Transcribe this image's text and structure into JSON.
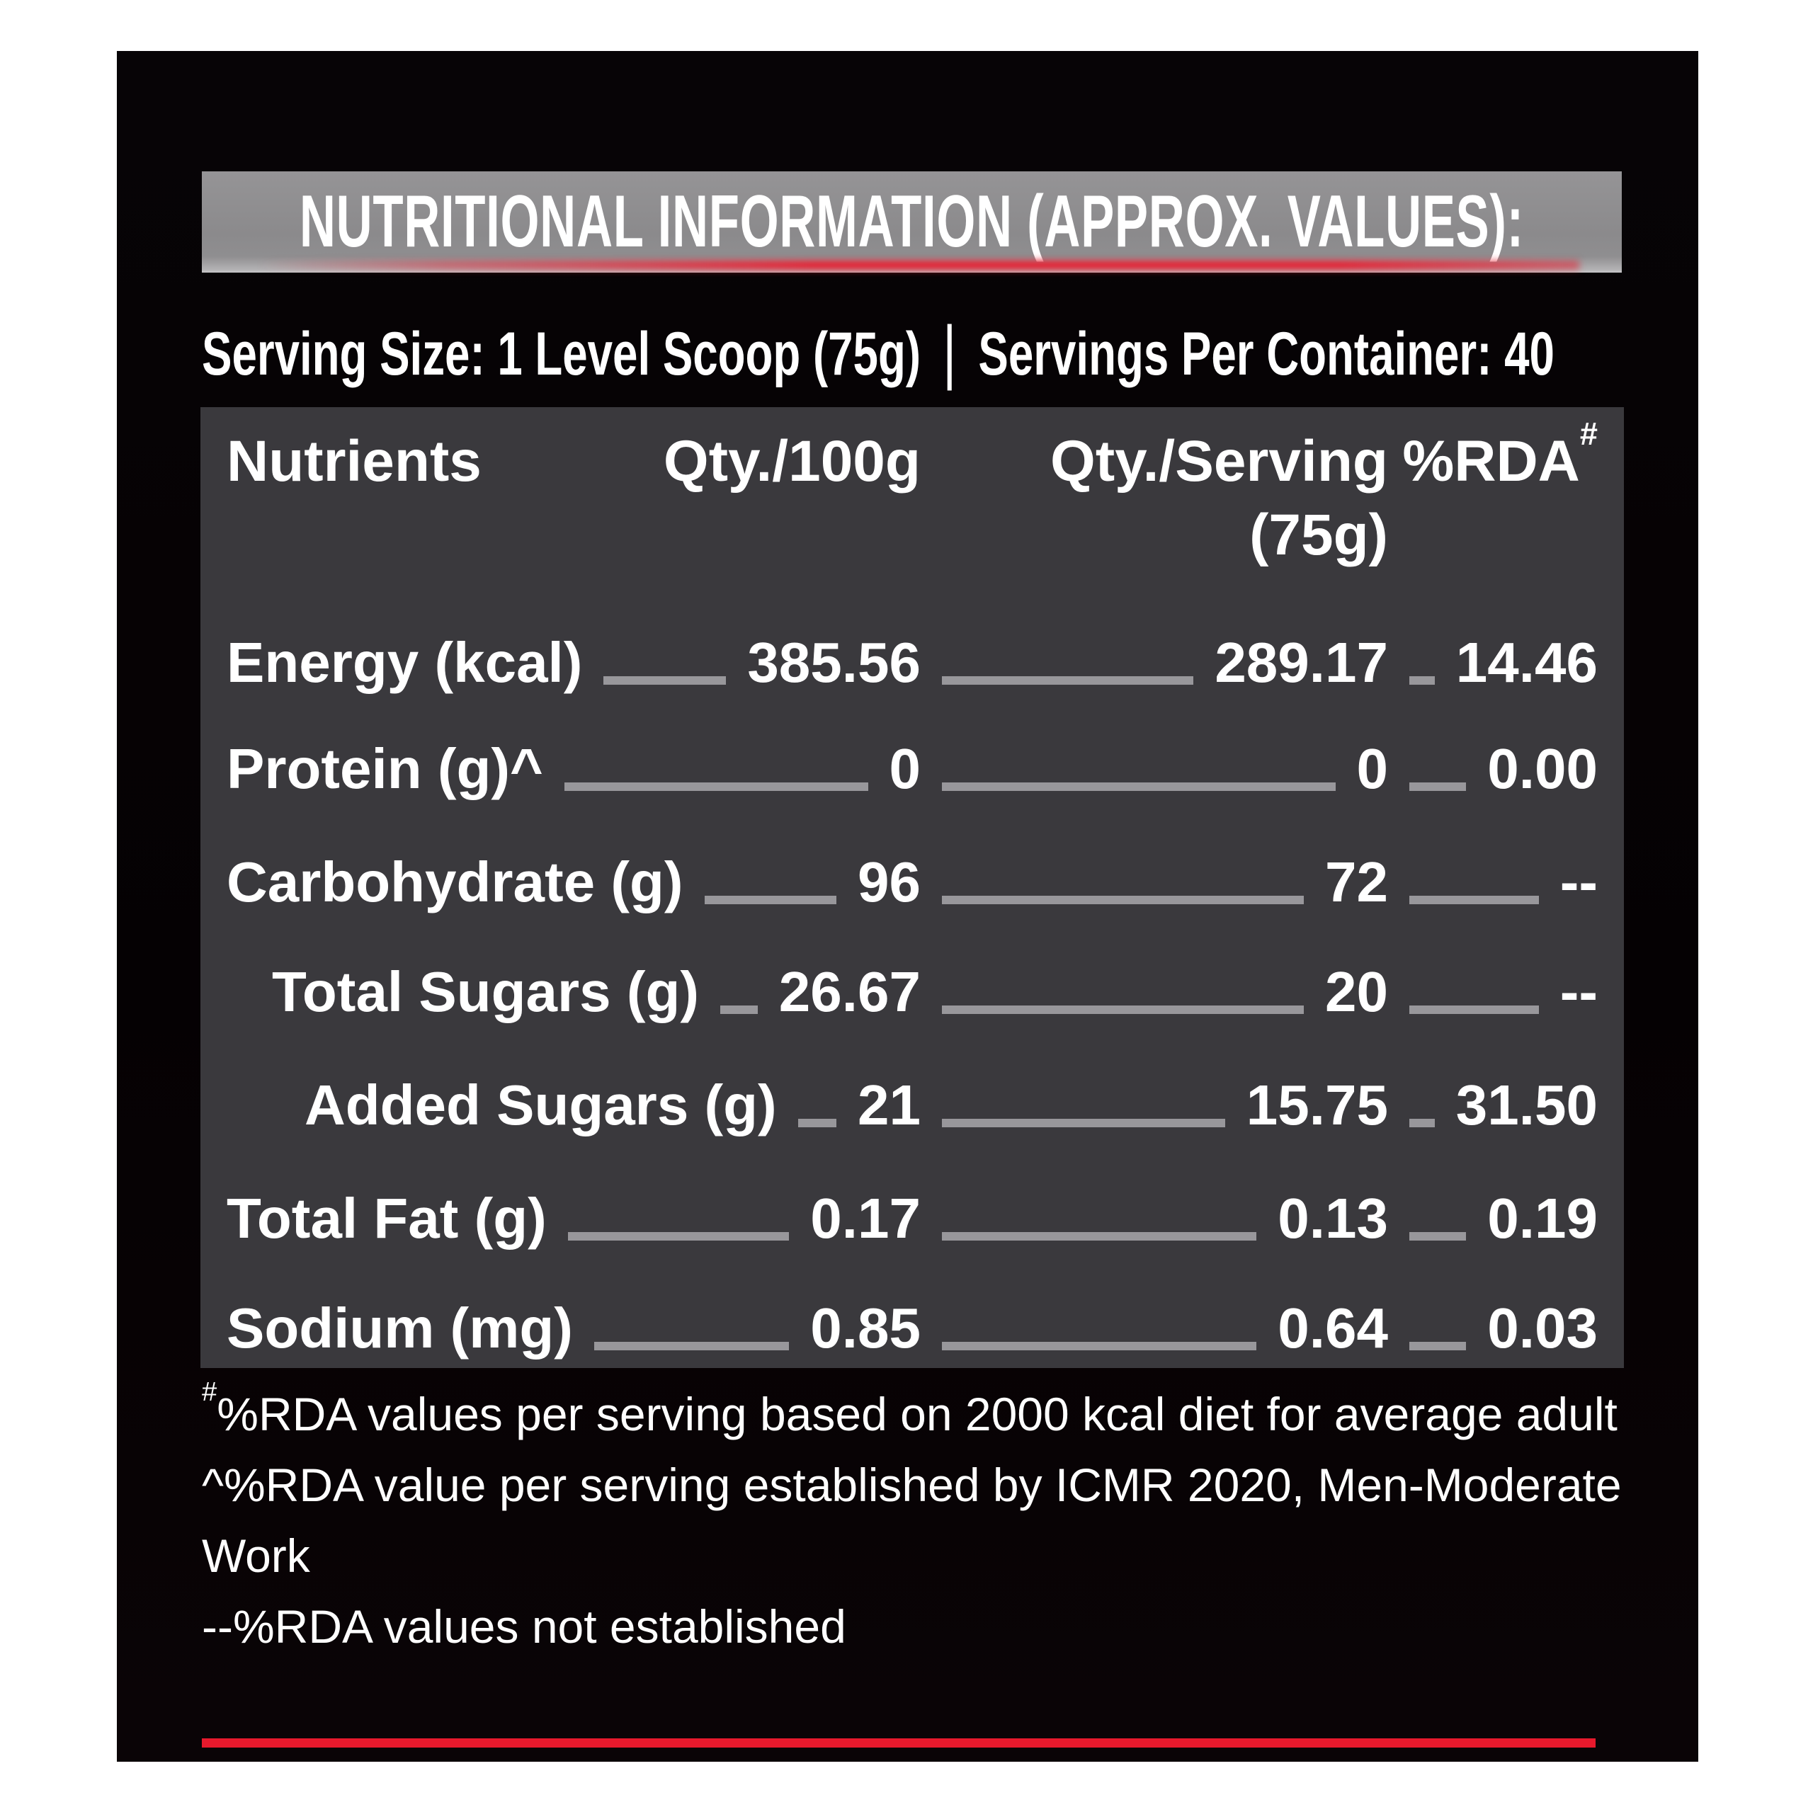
{
  "header": {
    "title": "NUTRITIONAL INFORMATION (APPROX. VALUES):"
  },
  "serving": {
    "size_text": "Serving Size: 1 Level Scoop (75g)",
    "separator": "|",
    "per_container_text": "Servings Per Container: 40"
  },
  "table": {
    "columns": {
      "nutrients": "Nutrients",
      "per_100g": "Qty./100g",
      "per_serving_line1": "Qty./Serving",
      "per_serving_line2": "(75g)",
      "rda": "%RDA",
      "rda_sup": "#"
    },
    "rows": [
      {
        "label": "Energy (kcal)",
        "per_100g": "385.56",
        "per_serving": "289.17",
        "rda": "14.46"
      },
      {
        "label": "Protein (g)",
        "sup": "^",
        "per_100g": "0",
        "per_serving": "0",
        "rda": "0.00"
      },
      {
        "label": "Carbohydrate (g)",
        "per_100g": "96",
        "per_serving": "72",
        "rda": "--"
      },
      {
        "label": "Total Sugars (g)",
        "per_100g": "26.67",
        "per_serving": "20",
        "rda": "--"
      },
      {
        "label": "Added Sugars (g)",
        "per_100g": "21",
        "per_serving": "15.75",
        "rda": "31.50"
      },
      {
        "label": "Total Fat (g)",
        "per_100g": "0.17",
        "per_serving": "0.13",
        "rda": "0.19"
      },
      {
        "label": "Sodium (mg)",
        "per_100g": "0.85",
        "per_serving": "0.64",
        "rda": "0.03"
      }
    ]
  },
  "footnotes": [
    {
      "prefix": "#",
      "text": "%RDA values per serving based on 2000 kcal diet for average adult"
    },
    {
      "prefix": "^",
      "text": "%RDA value per serving established by ICMR 2020, Men-Moderate Work"
    },
    {
      "prefix": "--",
      "text": "%RDA values not established"
    }
  ],
  "colors": {
    "page_bg": "#ffffff",
    "panel_bg": "#050103",
    "header_bar_bg": "#8b8a8c",
    "table_bg": "#3a393d",
    "text": "#ffffff",
    "accent_red": "#e8192c",
    "leader_line": "#98979b"
  }
}
